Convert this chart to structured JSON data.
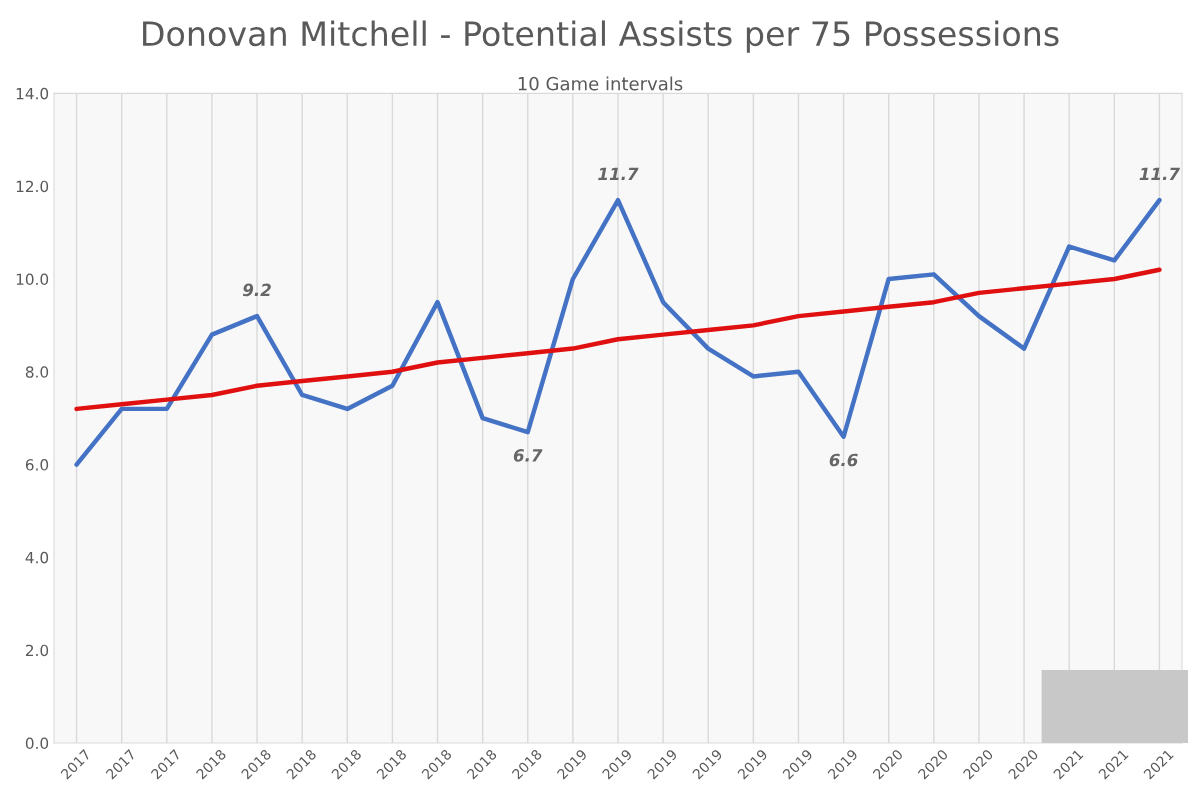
{
  "chart_data": {
    "type": "line",
    "title": "Donovan Mitchell - Potential Assists per 75 Possessions",
    "subtitle": "10 Game intervals",
    "categories": [
      "2017",
      "2017",
      "2017",
      "2018",
      "2018",
      "2018",
      "2018",
      "2018",
      "2018",
      "2018",
      "2018",
      "2019",
      "2019",
      "2019",
      "2019",
      "2019",
      "2019",
      "2019",
      "2020",
      "2020",
      "2020",
      "2020",
      "2021",
      "2021",
      "2021"
    ],
    "series": [
      {
        "color": "#4472c4",
        "values": [
          6.0,
          7.2,
          7.2,
          8.8,
          9.2,
          7.5,
          7.2,
          7.7,
          9.5,
          7.0,
          6.7,
          10.0,
          11.7,
          9.5,
          8.5,
          7.9,
          8.0,
          6.6,
          10.0,
          10.1,
          9.2,
          8.5,
          10.7,
          10.4,
          11.7
        ],
        "value_labels": [
          null,
          null,
          null,
          null,
          "9.2",
          null,
          null,
          null,
          null,
          null,
          "6.7",
          null,
          "11.7",
          null,
          null,
          null,
          null,
          "6.6",
          null,
          null,
          null,
          null,
          null,
          null,
          "11.7"
        ]
      },
      {
        "color": "#e01010",
        "values": [
          7.2,
          7.3,
          7.4,
          7.5,
          7.7,
          7.8,
          7.9,
          8.0,
          8.2,
          8.3,
          8.4,
          8.5,
          8.7,
          8.8,
          8.9,
          9.0,
          9.2,
          9.3,
          9.4,
          9.5,
          9.7,
          9.8,
          9.9,
          10.0,
          10.2
        ]
      }
    ],
    "ylim": [
      0,
      14
    ],
    "yticks": [
      {
        "value": 0,
        "label": "0.0"
      },
      {
        "value": 2,
        "label": "2.0"
      },
      {
        "value": 4,
        "label": "4.0"
      },
      {
        "value": 6,
        "label": "6.0"
      },
      {
        "value": 8,
        "label": "8.0"
      },
      {
        "value": 10,
        "label": "10.0"
      },
      {
        "value": 12,
        "label": "12.0"
      },
      {
        "value": 14,
        "label": "14.0"
      }
    ],
    "grid": "x",
    "legend": false,
    "marker": "none",
    "line_style": "solid"
  }
}
